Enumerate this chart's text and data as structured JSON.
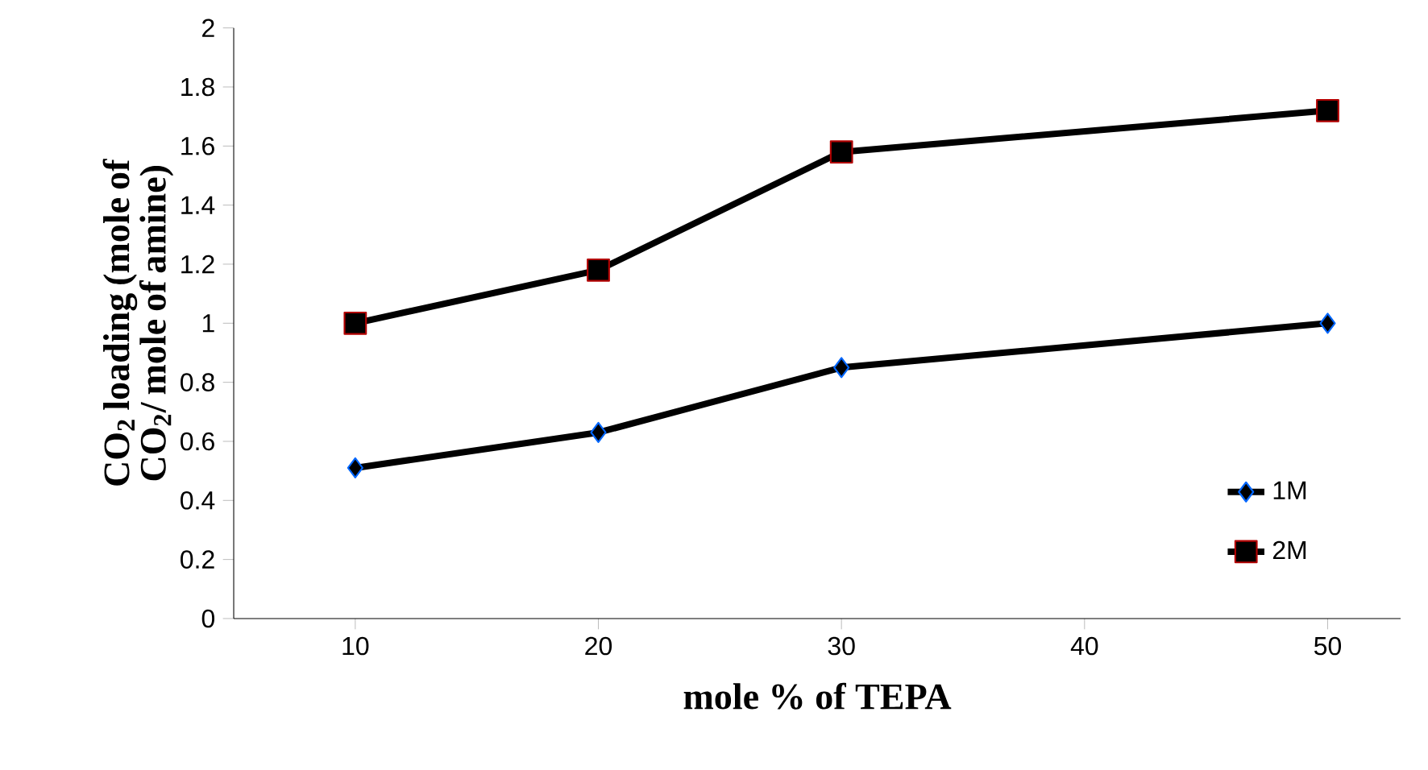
{
  "chart_data": {
    "type": "line",
    "xlabel": "mole % of TEPA",
    "ylabel": "CO$_{2}$ loading (mole of CO$_{2}$/ mole of amine)",
    "x": [
      10,
      20,
      30,
      50
    ],
    "series": [
      {
        "name": "1M",
        "color": "#000000",
        "marker": "diamond",
        "values": [
          0.51,
          0.63,
          0.85,
          1.0
        ]
      },
      {
        "name": "2M",
        "color": "#000000",
        "marker": "square",
        "values": [
          1.0,
          1.18,
          1.58,
          1.72
        ]
      }
    ],
    "xlim": [
      5,
      53
    ],
    "xticks": [
      10,
      20,
      30,
      40,
      50
    ],
    "ylim": [
      0,
      2
    ],
    "yticks": [
      0,
      0.2,
      0.4,
      0.6,
      0.8,
      1,
      1.2,
      1.4,
      1.6,
      1.8,
      2
    ],
    "grid": false,
    "legend": "bottom right",
    "line_style": "solid"
  }
}
